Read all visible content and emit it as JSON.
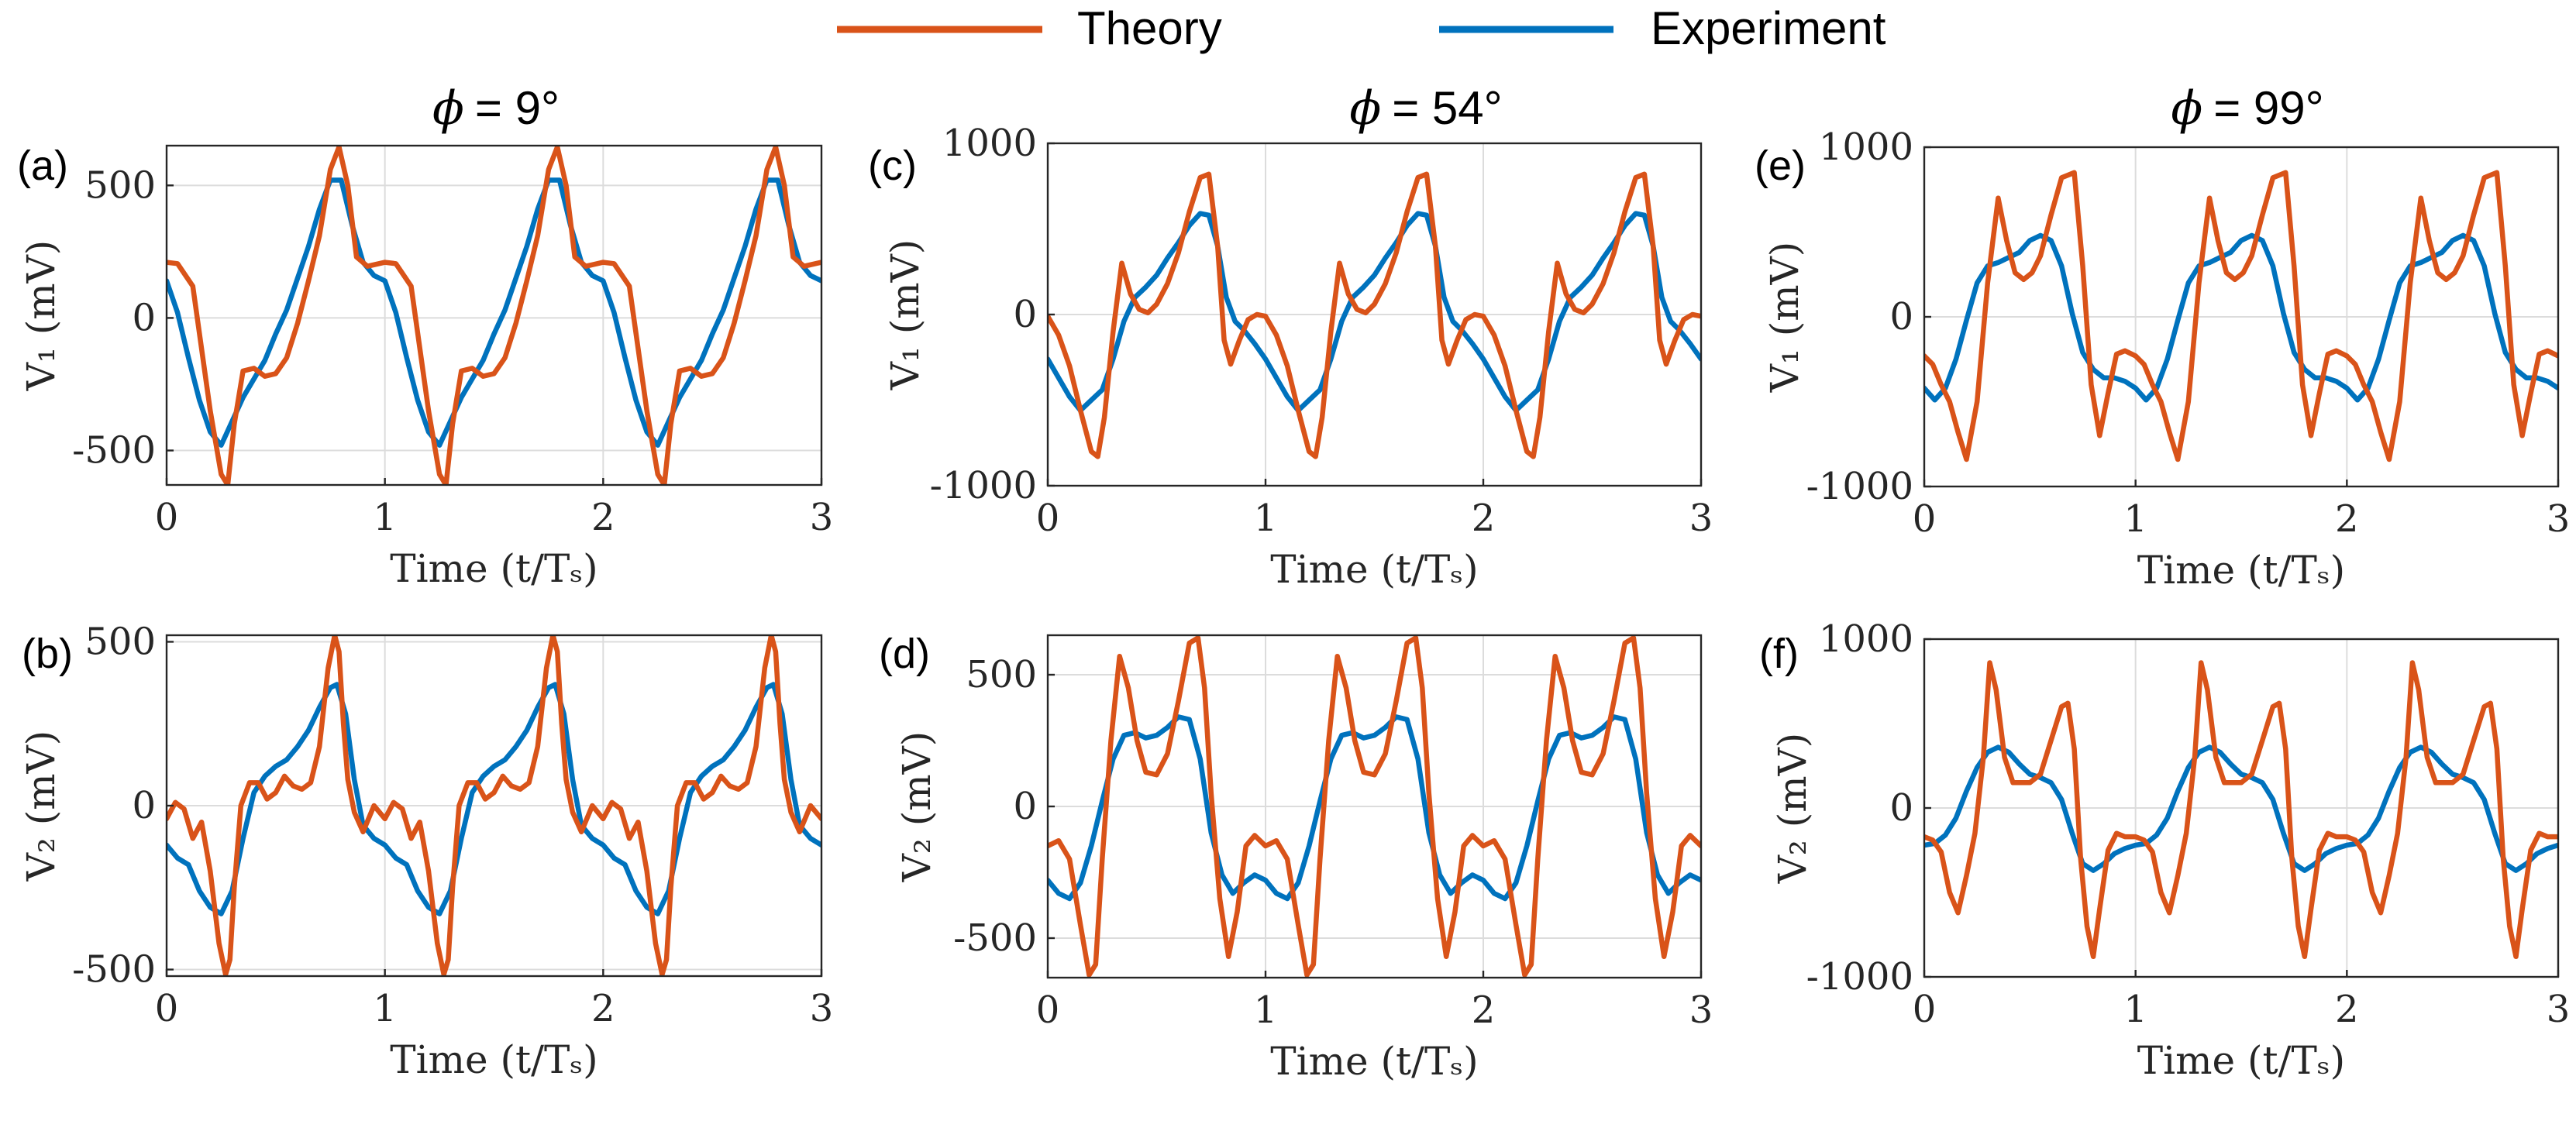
{
  "legend": [
    {
      "label": "Theory",
      "color": "#D95319"
    },
    {
      "label": "Experiment",
      "color": "#0072BD"
    }
  ],
  "columns": [
    {
      "title": "ϕ = 9°",
      "symbol": "ϕ",
      "value_text": "= 9°"
    },
    {
      "title": "ϕ = 54°",
      "symbol": "ϕ",
      "value_text": "= 54°"
    },
    {
      "title": "ϕ = 99°",
      "symbol": "ϕ",
      "value_text": "= 99°"
    }
  ],
  "xaxis": {
    "label": "Time",
    "label_math": "(t/Tₛ)",
    "range": [
      0,
      3
    ],
    "ticks": [
      "0",
      "1",
      "2",
      "3"
    ]
  },
  "chart_data": [
    {
      "type": "line",
      "panel": "(a)",
      "phi": "9°",
      "ylabel": "V₁ (mV)",
      "ylim": [
        -630,
        650
      ],
      "yticks": [
        -500,
        0,
        500
      ],
      "ytick_labels": [
        "-500",
        "0",
        "500"
      ],
      "xlabel": "Time (t/Tₛ)",
      "xlim": [
        0,
        3
      ],
      "grid": true,
      "series": [
        {
          "name": "Theory",
          "color": "#D95319",
          "x": [
            0,
            0.05,
            0.12,
            0.2,
            0.25,
            0.28,
            0.31,
            0.35,
            0.4,
            0.45,
            0.5,
            0.55,
            0.6,
            0.65,
            0.7,
            0.75,
            0.79,
            0.83,
            0.87,
            0.92,
            1.0
          ],
          "y": [
            210,
            205,
            120,
            -350,
            -590,
            -630,
            -400,
            -200,
            -190,
            -220,
            -210,
            -150,
            -20,
            140,
            310,
            560,
            645,
            500,
            230,
            195,
            210
          ]
        },
        {
          "name": "Experiment",
          "color": "#0072BD",
          "x": [
            0,
            0.05,
            0.1,
            0.15,
            0.2,
            0.25,
            0.3,
            0.35,
            0.4,
            0.45,
            0.5,
            0.55,
            0.6,
            0.65,
            0.7,
            0.75,
            0.8,
            0.85,
            0.9,
            0.95,
            1.0
          ],
          "y": [
            140,
            20,
            -150,
            -310,
            -430,
            -480,
            -390,
            -300,
            -230,
            -160,
            -60,
            30,
            150,
            270,
            410,
            520,
            520,
            350,
            210,
            160,
            140
          ]
        }
      ]
    },
    {
      "type": "line",
      "panel": "(b)",
      "phi": "9°",
      "ylabel": "V₂ (mV)",
      "ylim": [
        -520,
        520
      ],
      "yticks": [
        -500,
        0,
        500
      ],
      "ytick_labels": [
        "-500",
        "0",
        "500"
      ],
      "xlabel": "Time (t/Tₛ)",
      "xlim": [
        0,
        3
      ],
      "grid": true,
      "series": [
        {
          "name": "Theory",
          "color": "#D95319",
          "x": [
            0,
            0.04,
            0.08,
            0.12,
            0.16,
            0.2,
            0.24,
            0.27,
            0.29,
            0.31,
            0.34,
            0.38,
            0.42,
            0.46,
            0.5,
            0.54,
            0.58,
            0.62,
            0.66,
            0.7,
            0.74,
            0.77,
            0.79,
            0.81,
            0.83,
            0.86,
            0.9,
            0.95,
            1.0
          ],
          "y": [
            -40,
            10,
            -10,
            -100,
            -50,
            -200,
            -420,
            -515,
            -470,
            -250,
            0,
            70,
            70,
            20,
            40,
            90,
            60,
            50,
            70,
            180,
            420,
            520,
            470,
            250,
            80,
            -20,
            -80,
            0,
            -40
          ]
        },
        {
          "name": "Experiment",
          "color": "#0072BD",
          "x": [
            0,
            0.05,
            0.1,
            0.15,
            0.2,
            0.25,
            0.3,
            0.35,
            0.4,
            0.45,
            0.5,
            0.55,
            0.6,
            0.65,
            0.7,
            0.75,
            0.78,
            0.82,
            0.86,
            0.9,
            0.95,
            1.0
          ],
          "y": [
            -120,
            -160,
            -180,
            -260,
            -310,
            -330,
            -260,
            -100,
            40,
            90,
            120,
            140,
            180,
            230,
            300,
            360,
            370,
            280,
            80,
            -60,
            -100,
            -120
          ]
        }
      ]
    },
    {
      "type": "line",
      "panel": "(c)",
      "phi": "54°",
      "ylabel": "V₁ (mV)",
      "ylim": [
        -1000,
        1000
      ],
      "yticks": [
        -1000,
        0,
        1000
      ],
      "ytick_labels": [
        "-1000",
        "0",
        "1000"
      ],
      "xlabel": "Time (t/Tₛ)",
      "xlim": [
        0,
        3
      ],
      "grid": true,
      "series": [
        {
          "name": "Theory",
          "color": "#D95319",
          "x": [
            0,
            0.05,
            0.1,
            0.15,
            0.2,
            0.23,
            0.26,
            0.3,
            0.34,
            0.38,
            0.42,
            0.46,
            0.5,
            0.55,
            0.6,
            0.65,
            0.7,
            0.74,
            0.78,
            0.81,
            0.84,
            0.88,
            0.92,
            0.96,
            1.0
          ],
          "y": [
            -10,
            -120,
            -300,
            -560,
            -800,
            -830,
            -600,
            -100,
            300,
            120,
            30,
            10,
            60,
            180,
            360,
            600,
            800,
            820,
            400,
            -150,
            -290,
            -150,
            -30,
            0,
            -10
          ]
        },
        {
          "name": "Experiment",
          "color": "#0072BD",
          "x": [
            0,
            0.05,
            0.1,
            0.15,
            0.2,
            0.25,
            0.3,
            0.35,
            0.4,
            0.45,
            0.5,
            0.55,
            0.6,
            0.65,
            0.7,
            0.74,
            0.78,
            0.82,
            0.86,
            0.9,
            0.95,
            1.0
          ],
          "y": [
            -260,
            -370,
            -480,
            -560,
            -500,
            -440,
            -260,
            -40,
            100,
            160,
            230,
            330,
            420,
            520,
            590,
            580,
            400,
            100,
            -40,
            -90,
            -170,
            -260
          ]
        }
      ]
    },
    {
      "type": "line",
      "panel": "(d)",
      "phi": "54°",
      "ylabel": "V₂ (mV)",
      "ylim": [
        -650,
        650
      ],
      "yticks": [
        -500,
        0,
        500
      ],
      "ytick_labels": [
        "-500",
        "0",
        "500"
      ],
      "xlabel": "Time (t/Tₛ)",
      "xlim": [
        0,
        3
      ],
      "grid": true,
      "series": [
        {
          "name": "Theory",
          "color": "#D95319",
          "x": [
            0,
            0.05,
            0.1,
            0.15,
            0.19,
            0.22,
            0.25,
            0.29,
            0.33,
            0.37,
            0.41,
            0.45,
            0.5,
            0.55,
            0.6,
            0.65,
            0.69,
            0.72,
            0.75,
            0.79,
            0.83,
            0.87,
            0.91,
            0.95,
            1.0
          ],
          "y": [
            -150,
            -130,
            -200,
            -450,
            -640,
            -600,
            -200,
            250,
            570,
            450,
            250,
            130,
            120,
            200,
            400,
            620,
            640,
            450,
            50,
            -350,
            -570,
            -400,
            -150,
            -110,
            -150
          ]
        },
        {
          "name": "Experiment",
          "color": "#0072BD",
          "x": [
            0,
            0.05,
            0.1,
            0.15,
            0.2,
            0.25,
            0.3,
            0.35,
            0.4,
            0.45,
            0.5,
            0.55,
            0.6,
            0.65,
            0.7,
            0.75,
            0.8,
            0.85,
            0.9,
            0.95,
            1.0
          ],
          "y": [
            -280,
            -330,
            -350,
            -290,
            -150,
            20,
            180,
            270,
            280,
            260,
            270,
            300,
            340,
            330,
            180,
            -100,
            -260,
            -330,
            -290,
            -260,
            -280
          ]
        }
      ]
    },
    {
      "type": "line",
      "panel": "(e)",
      "phi": "99°",
      "ylabel": "V₁ (mV)",
      "ylim": [
        -1000,
        1000
      ],
      "yticks": [
        -1000,
        0,
        1000
      ],
      "ytick_labels": [
        "-1000",
        "0",
        "1000"
      ],
      "xlabel": "Time (t/Tₛ)",
      "xlim": [
        0,
        3
      ],
      "grid": true,
      "series": [
        {
          "name": "Theory",
          "color": "#D95319",
          "x": [
            0,
            0.04,
            0.08,
            0.12,
            0.16,
            0.2,
            0.25,
            0.3,
            0.35,
            0.39,
            0.43,
            0.47,
            0.51,
            0.55,
            0.6,
            0.65,
            0.71,
            0.75,
            0.79,
            0.83,
            0.87,
            0.91,
            0.95,
            1.0
          ],
          "y": [
            -230,
            -280,
            -400,
            -500,
            -680,
            -840,
            -500,
            200,
            700,
            450,
            260,
            220,
            260,
            360,
            600,
            820,
            850,
            300,
            -400,
            -700,
            -450,
            -220,
            -200,
            -230
          ]
        },
        {
          "name": "Experiment",
          "color": "#0072BD",
          "x": [
            0,
            0.05,
            0.1,
            0.15,
            0.2,
            0.25,
            0.3,
            0.35,
            0.4,
            0.45,
            0.5,
            0.55,
            0.6,
            0.65,
            0.7,
            0.75,
            0.8,
            0.85,
            0.9,
            0.95,
            1.0
          ],
          "y": [
            -420,
            -490,
            -420,
            -250,
            -20,
            200,
            300,
            320,
            350,
            380,
            450,
            480,
            450,
            300,
            20,
            -210,
            -310,
            -360,
            -360,
            -380,
            -420
          ]
        }
      ]
    },
    {
      "type": "line",
      "panel": "(f)",
      "phi": "99°",
      "ylabel": "V₂ (mV)",
      "ylim": [
        -1000,
        1000
      ],
      "yticks": [
        -1000,
        0,
        1000
      ],
      "ytick_labels": [
        "-1000",
        "0",
        "1000"
      ],
      "xlabel": "Time (t/Tₛ)",
      "xlim": [
        0,
        3
      ],
      "grid": true,
      "series": [
        {
          "name": "Theory",
          "color": "#D95319",
          "x": [
            0,
            0.04,
            0.08,
            0.12,
            0.16,
            0.2,
            0.24,
            0.28,
            0.31,
            0.34,
            0.38,
            0.42,
            0.46,
            0.5,
            0.55,
            0.6,
            0.65,
            0.68,
            0.71,
            0.74,
            0.77,
            0.8,
            0.83,
            0.87,
            0.91,
            0.95,
            1.0
          ],
          "y": [
            -170,
            -190,
            -260,
            -500,
            -620,
            -400,
            -150,
            300,
            860,
            700,
            300,
            150,
            150,
            150,
            200,
            400,
            600,
            620,
            350,
            -300,
            -700,
            -880,
            -600,
            -250,
            -150,
            -170,
            -170
          ]
        },
        {
          "name": "Experiment",
          "color": "#0072BD",
          "x": [
            0,
            0.05,
            0.1,
            0.15,
            0.2,
            0.25,
            0.3,
            0.35,
            0.4,
            0.45,
            0.5,
            0.55,
            0.6,
            0.65,
            0.7,
            0.75,
            0.8,
            0.85,
            0.9,
            0.95,
            1.0
          ],
          "y": [
            -220,
            -210,
            -160,
            -60,
            100,
            240,
            330,
            360,
            330,
            260,
            200,
            180,
            150,
            50,
            -150,
            -330,
            -370,
            -330,
            -270,
            -240,
            -220
          ]
        }
      ]
    }
  ]
}
